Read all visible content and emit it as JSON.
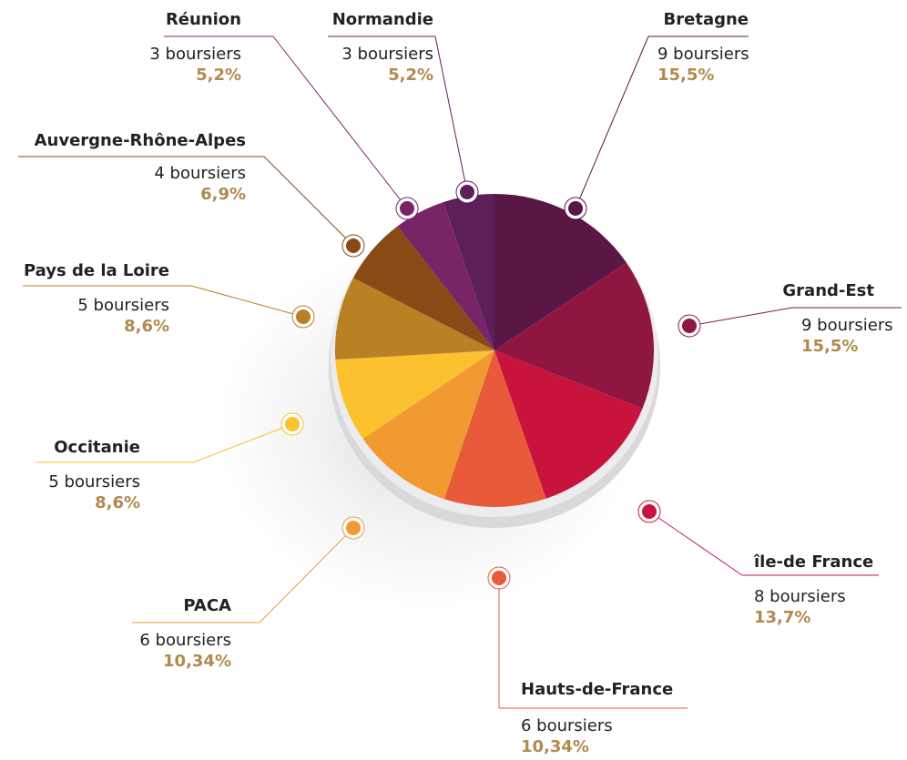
{
  "chart_data": {
    "type": "pie",
    "categories": [
      "Bretagne",
      "Grand-Est",
      "île-de France",
      "Hauts-de-France",
      "PACA",
      "Occitanie",
      "Pays de la Loire",
      "Auvergne-Rhône-Alpes",
      "Réunion",
      "Normandie"
    ],
    "values": [
      15.5,
      15.5,
      13.7,
      10.34,
      10.34,
      8.6,
      8.6,
      6.9,
      5.2,
      5.2
    ],
    "value_labels": [
      "15,5%",
      "15,5%",
      "13,7%",
      "10,34%",
      "10,34%",
      "8,6%",
      "8,6%",
      "6,9%",
      "5,2%",
      "5,2%"
    ],
    "count_labels": [
      "9 boursiers",
      "9 boursiers",
      "8 boursiers",
      "6 boursiers",
      "6 boursiers",
      "5 boursiers",
      "5 boursiers",
      "4 boursiers",
      "3 boursiers",
      "3 boursiers"
    ],
    "colors": [
      "#5a1745",
      "#8e1640",
      "#c8143c",
      "#e85a3a",
      "#f29a32",
      "#fbc12f",
      "#b98024",
      "#8a4a16",
      "#7a2468",
      "#5c1f5a"
    ]
  }
}
